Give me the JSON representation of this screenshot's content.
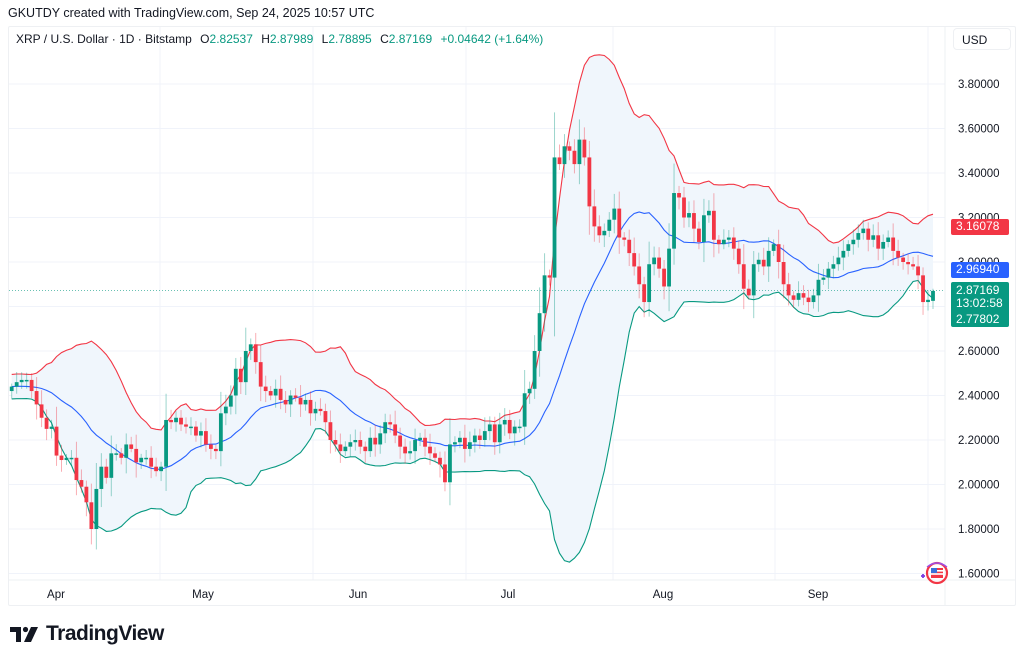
{
  "header": {
    "created_text": "GKUTDY created with TradingView.com, Sep 24, 2025 10:57 UTC"
  },
  "legend": {
    "symbol": "XRP / U.S. Dollar · 1D · Bitstamp",
    "open_label": "O",
    "open": "2.82537",
    "high_label": "H",
    "high": "2.87989",
    "low_label": "L",
    "low": "2.78895",
    "close_label": "C",
    "close": "2.87169",
    "change": "+0.04642 (+1.64%)"
  },
  "currency_button": {
    "label": "USD"
  },
  "price_tags": {
    "upper_band": "3.16078",
    "basis": "2.96940",
    "last_price": "2.87169",
    "countdown": "13:02:58",
    "lower_band": "2.77802"
  },
  "footer": {
    "brand": "TradingView"
  },
  "colors": {
    "up": "#089981",
    "down": "#f23645",
    "upper_band": "#f23645",
    "basis": "#2962ff",
    "lower_band": "#089981",
    "band_fill": "#f0f6fc",
    "grid": "#f0f3fa"
  },
  "chart_data": {
    "type": "candlestick",
    "title": "XRP / U.S. Dollar · 1D · Bitstamp",
    "indicators": [
      "Bollinger Bands (20, 2)"
    ],
    "ylabel": "USD",
    "yticks": [
      1.6,
      1.8,
      2.0,
      2.2,
      2.4,
      2.6,
      2.8,
      3.0,
      3.2,
      3.4,
      3.6,
      3.8
    ],
    "ytick_labels": [
      "1.60000",
      "1.80000",
      "2.00000",
      "2.20000",
      "2.40000",
      "2.60000",
      "2.80000",
      "3.00000",
      "3.20000",
      "3.40000",
      "3.60000",
      "3.80000"
    ],
    "ylim": [
      1.55,
      3.95
    ],
    "xtick_labels": [
      "Apr",
      "May",
      "Jun",
      "Jul",
      "Aug",
      "Sep"
    ],
    "x_start": "2025-03-22",
    "x_end": "2025-09-24",
    "last": {
      "open": 2.82537,
      "high": 2.87989,
      "low": 2.78895,
      "close": 2.87169
    },
    "bands_last": {
      "upper": 3.16078,
      "basis": 2.9694,
      "lower": 2.77802
    },
    "closes": [
      2.44,
      2.46,
      2.47,
      2.47,
      2.42,
      2.36,
      2.3,
      2.25,
      2.26,
      2.13,
      2.11,
      2.12,
      2.12,
      2.02,
      1.99,
      1.92,
      1.8,
      1.98,
      2.08,
      2.03,
      2.14,
      2.14,
      2.12,
      2.18,
      2.16,
      2.1,
      2.12,
      2.12,
      2.08,
      2.06,
      2.08,
      2.29,
      2.28,
      2.3,
      2.27,
      2.26,
      2.26,
      2.22,
      2.24,
      2.18,
      2.16,
      2.15,
      2.32,
      2.35,
      2.4,
      2.52,
      2.46,
      2.6,
      2.63,
      2.55,
      2.44,
      2.42,
      2.4,
      2.43,
      2.38,
      2.36,
      2.4,
      2.39,
      2.36,
      2.38,
      2.32,
      2.34,
      2.33,
      2.28,
      2.2,
      2.18,
      2.15,
      2.17,
      2.19,
      2.2,
      2.17,
      2.15,
      2.21,
      2.18,
      2.23,
      2.28,
      2.27,
      2.22,
      2.17,
      2.14,
      2.15,
      2.2,
      2.21,
      2.17,
      2.14,
      2.12,
      2.09,
      2.01,
      2.18,
      2.19,
      2.21,
      2.16,
      2.19,
      2.22,
      2.2,
      2.24,
      2.27,
      2.19,
      2.27,
      2.29,
      2.23,
      2.26,
      2.26,
      2.41,
      2.43,
      2.6,
      2.77,
      2.94,
      2.93,
      3.47,
      3.44,
      3.52,
      3.5,
      3.44,
      3.55,
      3.47,
      3.25,
      3.16,
      3.12,
      3.14,
      3.19,
      3.24,
      3.11,
      3.1,
      3.04,
      2.98,
      2.9,
      2.82,
      2.99,
      3.02,
      2.97,
      2.89,
      3.06,
      3.31,
      3.29,
      3.2,
      3.22,
      3.15,
      3.09,
      3.21,
      3.23,
      3.1,
      3.08,
      3.1,
      3.11,
      3.06,
      2.99,
      2.88,
      2.85,
      2.99,
      3.01,
      2.98,
      3.05,
      3.08,
      3.0,
      2.9,
      2.85,
      2.83,
      2.86,
      2.84,
      2.82,
      2.85,
      2.92,
      2.93,
      2.97,
      2.99,
      3.02,
      3.05,
      3.08,
      3.1,
      3.13,
      3.15,
      3.1,
      3.12,
      3.06,
      3.09,
      3.11,
      3.05,
      3.02,
      3.0,
      2.99,
      2.98,
      2.94,
      2.82,
      2.83,
      2.87
    ]
  }
}
